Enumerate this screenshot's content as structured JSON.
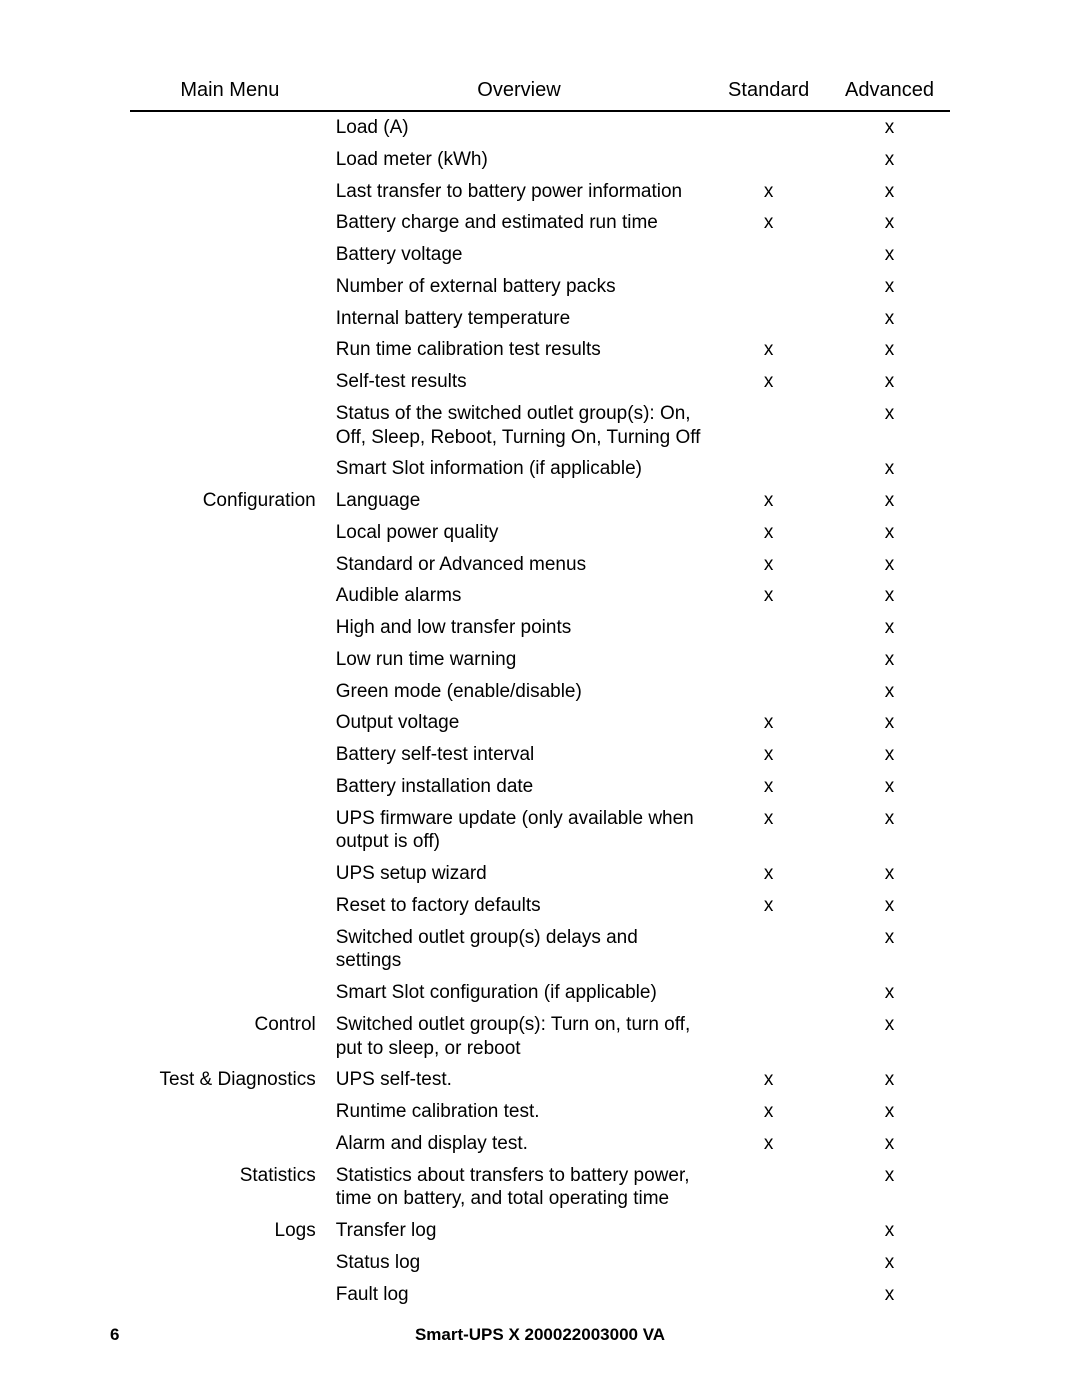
{
  "headers": {
    "main": "Main Menu",
    "overview": "Overview",
    "standard": "Standard",
    "advanced": "Advanced"
  },
  "rows": [
    {
      "main": "",
      "over": "Load (A)",
      "std": "",
      "adv": "x"
    },
    {
      "main": "",
      "over": "Load meter (kWh)",
      "std": "",
      "adv": "x"
    },
    {
      "main": "",
      "over": "Last transfer to battery power information",
      "std": "x",
      "adv": "x"
    },
    {
      "main": "",
      "over": "Battery charge and estimated run time",
      "std": "x",
      "adv": "x"
    },
    {
      "main": "",
      "over": "Battery voltage",
      "std": "",
      "adv": "x"
    },
    {
      "main": "",
      "over": "Number of external battery packs",
      "std": "",
      "adv": "x"
    },
    {
      "main": "",
      "over": "Internal battery temperature",
      "std": "",
      "adv": "x"
    },
    {
      "main": "",
      "over": "Run time calibration test results",
      "std": "x",
      "adv": "x"
    },
    {
      "main": "",
      "over": "Self-test results",
      "std": "x",
      "adv": "x"
    },
    {
      "main": "",
      "over": "Status of the switched outlet group(s): On, Off, Sleep, Reboot, Turning On, Turning Off",
      "std": "",
      "adv": "x"
    },
    {
      "main": "",
      "over": "Smart Slot information (if applicable)",
      "std": "",
      "adv": "x"
    },
    {
      "main": "Configuration",
      "over": "Language",
      "std": "x",
      "adv": "x"
    },
    {
      "main": "",
      "over": "Local power quality",
      "std": "x",
      "adv": "x"
    },
    {
      "main": "",
      "over": "Standard or Advanced menus",
      "std": "x",
      "adv": "x"
    },
    {
      "main": "",
      "over": "Audible alarms",
      "std": "x",
      "adv": "x"
    },
    {
      "main": "",
      "over": "High and low transfer points",
      "std": "",
      "adv": "x"
    },
    {
      "main": "",
      "over": "Low run time warning",
      "std": "",
      "adv": "x"
    },
    {
      "main": "",
      "over": "Green mode (enable/disable)",
      "std": "",
      "adv": "x"
    },
    {
      "main": "",
      "over": "Output voltage",
      "std": "x",
      "adv": "x"
    },
    {
      "main": "",
      "over": "Battery self-test interval",
      "std": "x",
      "adv": "x"
    },
    {
      "main": "",
      "over": "Battery installation date",
      "std": "x",
      "adv": "x"
    },
    {
      "main": "",
      "over": "UPS firmware update (only available when output is off)",
      "std": "x",
      "adv": "x"
    },
    {
      "main": "",
      "over": "UPS setup wizard",
      "std": "x",
      "adv": "x"
    },
    {
      "main": "",
      "over": "Reset to factory defaults",
      "std": "x",
      "adv": "x"
    },
    {
      "main": "",
      "over": "Switched outlet group(s) delays and settings",
      "std": "",
      "adv": "x"
    },
    {
      "main": "",
      "over": "Smart Slot configuration (if applicable)",
      "std": "",
      "adv": "x"
    },
    {
      "main": "Control",
      "over": "Switched outlet group(s): Turn on, turn off, put to sleep, or reboot",
      "std": "",
      "adv": "x"
    },
    {
      "main": "Test & Diagnostics",
      "over": "UPS self-test.",
      "std": "x",
      "adv": "x"
    },
    {
      "main": "",
      "over": "Runtime calibration test.",
      "std": "x",
      "adv": "x"
    },
    {
      "main": "",
      "over": "Alarm and display test.",
      "std": "x",
      "adv": "x"
    },
    {
      "main": "Statistics",
      "over": "Statistics about transfers to battery power, time on battery, and total operating time",
      "std": "",
      "adv": "x"
    },
    {
      "main": "Logs",
      "over": "Transfer log",
      "std": "",
      "adv": "x"
    },
    {
      "main": "",
      "over": "Status log",
      "std": "",
      "adv": "x"
    },
    {
      "main": "",
      "over": "Fault log",
      "std": "",
      "adv": "x"
    }
  ],
  "footer": {
    "page_number": "6",
    "title": "Smart-UPS X 200022003000 VA"
  }
}
